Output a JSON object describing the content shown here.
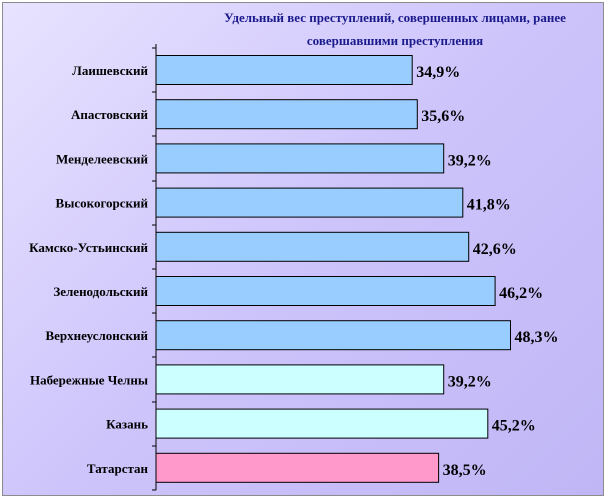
{
  "chart_data": {
    "type": "bar",
    "orientation": "horizontal",
    "title_lines": [
      "Удельный вес преступлений, совершенных лицами, ранее",
      "совершавшими преступления"
    ],
    "categories": [
      "Лаишевский",
      "Апастовский",
      "Менделеевский",
      "Высокогорский",
      "Камско-Устьинский",
      "Зеленодольский",
      "Верхнеуслонский",
      "Набережные Челны",
      "Казань",
      "Татарстан"
    ],
    "values": [
      34.9,
      35.6,
      39.2,
      41.8,
      42.6,
      46.2,
      48.3,
      39.2,
      45.2,
      38.5
    ],
    "value_labels": [
      "34,9%",
      "35,6%",
      "39,2%",
      "41,8%",
      "42,6%",
      "46,2%",
      "48,3%",
      "39,2%",
      "45,2%",
      "38,5%"
    ],
    "bar_colors": [
      "#99ccff",
      "#99ccff",
      "#99ccff",
      "#99ccff",
      "#99ccff",
      "#99ccff",
      "#99ccff",
      "#ccffff",
      "#ccffff",
      "#ff99cc"
    ],
    "xlim": [
      0,
      60
    ],
    "grid": false,
    "legend": false
  }
}
